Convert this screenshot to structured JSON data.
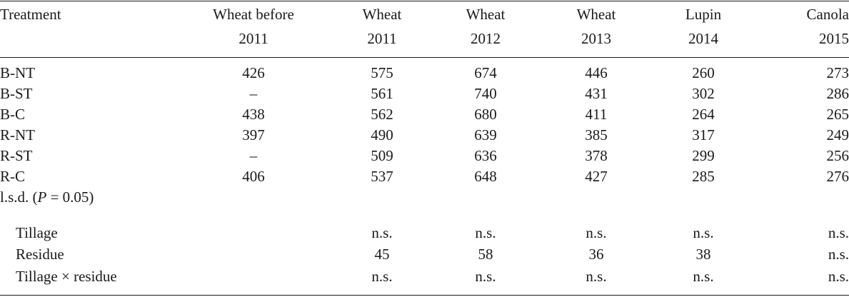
{
  "table": {
    "headers": [
      {
        "line1": "Treatment",
        "line2": ""
      },
      {
        "line1": "Wheat before",
        "line2": "2011"
      },
      {
        "line1": "Wheat",
        "line2": "2011"
      },
      {
        "line1": "Wheat",
        "line2": "2012"
      },
      {
        "line1": "Wheat",
        "line2": "2013"
      },
      {
        "line1": "Lupin",
        "line2": "2014"
      },
      {
        "line1": "Canola",
        "line2": "2015"
      }
    ],
    "rows": [
      {
        "label": "B-NT",
        "values": [
          "426",
          "575",
          "674",
          "446",
          "260",
          "273"
        ]
      },
      {
        "label": "B-ST",
        "values": [
          "–",
          "561",
          "740",
          "431",
          "302",
          "286"
        ]
      },
      {
        "label": "B-C",
        "values": [
          "438",
          "562",
          "680",
          "411",
          "264",
          "265"
        ]
      },
      {
        "label": "R-NT",
        "values": [
          "397",
          "490",
          "639",
          "385",
          "317",
          "249"
        ]
      },
      {
        "label": "R-ST",
        "values": [
          "–",
          "509",
          "636",
          "378",
          "299",
          "256"
        ]
      },
      {
        "label": "R-C",
        "values": [
          "406",
          "537",
          "648",
          "427",
          "285",
          "276"
        ]
      }
    ],
    "lsd": {
      "prefix": "l.s.d. (",
      "p_symbol": "P",
      "suffix": " = 0.05)"
    },
    "lsd_rows": [
      {
        "label": "Tillage",
        "values": [
          "",
          "n.s.",
          "n.s.",
          "n.s.",
          "n.s.",
          "n.s."
        ]
      },
      {
        "label": "Residue",
        "values": [
          "",
          "45",
          "58",
          "36",
          "38",
          "n.s."
        ]
      },
      {
        "label": "Tillage × residue",
        "values": [
          "",
          "n.s.",
          "n.s.",
          "n.s.",
          "n.s.",
          "n.s."
        ]
      }
    ]
  }
}
